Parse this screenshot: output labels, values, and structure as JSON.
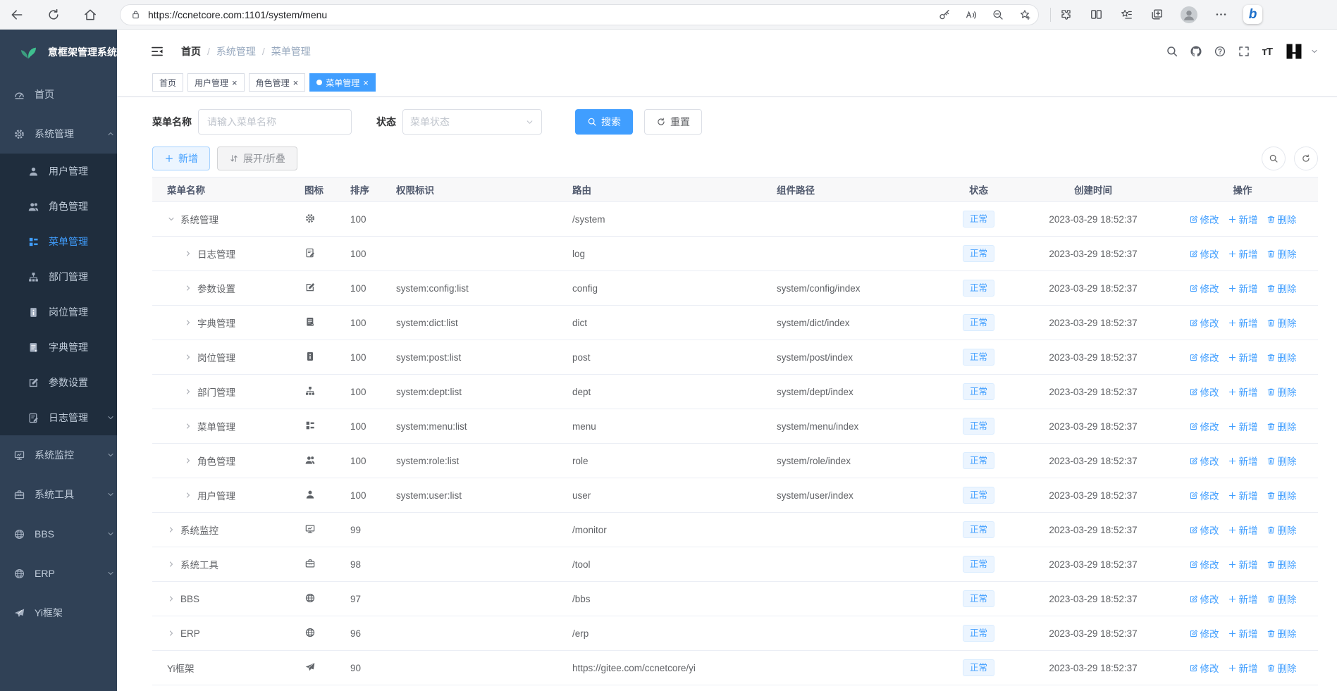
{
  "colors": {
    "accent": "#409eff",
    "sidebar_bg": "#304156",
    "submenu_bg": "#1f2d3d",
    "tag_bg": "#ecf5ff",
    "tag_border": "#d9ecff",
    "logo_green": "#3fbf8f"
  },
  "browser": {
    "url": "https://ccnetcore.com:1101/system/menu",
    "left_icons": [
      "back-icon",
      "refresh-icon",
      "home-icon"
    ],
    "pill_icons": [
      "lock-icon",
      "key-icon",
      "read-aloud-icon",
      "zoom-out-icon",
      "star-add-icon"
    ],
    "right_icons": [
      "essentials-icon",
      "split-screen-icon",
      "favorites-icon",
      "collections-icon",
      "profile-icon",
      "more-dots-icon",
      "bing-icon"
    ],
    "bing_glyph": "b"
  },
  "sidebar": {
    "logo_text": "意框架管理系统",
    "items": [
      {
        "id": "home",
        "label": "首页",
        "icon": "icon-dashboard",
        "type": "top"
      },
      {
        "id": "system-mgmt",
        "label": "系统管理",
        "icon": "icon-gear",
        "type": "top",
        "chevron": "up",
        "expanded": true
      },
      {
        "id": "user-mgmt",
        "label": "用户管理",
        "icon": "icon-user",
        "type": "sub"
      },
      {
        "id": "role-mgmt",
        "label": "角色管理",
        "icon": "icon-users",
        "type": "sub"
      },
      {
        "id": "menu-mgmt",
        "label": "菜单管理",
        "icon": "icon-menu-list",
        "type": "sub",
        "active": true
      },
      {
        "id": "dept-mgmt",
        "label": "部门管理",
        "icon": "icon-org-tree",
        "type": "sub"
      },
      {
        "id": "post-mgmt",
        "label": "岗位管理",
        "icon": "icon-badge",
        "type": "sub"
      },
      {
        "id": "dict-mgmt",
        "label": "字典管理",
        "icon": "icon-book",
        "type": "sub"
      },
      {
        "id": "config",
        "label": "参数设置",
        "icon": "icon-edit",
        "type": "sub"
      },
      {
        "id": "log-mgmt",
        "label": "日志管理",
        "icon": "icon-log",
        "type": "sub",
        "chevron": "down"
      },
      {
        "id": "monitor",
        "label": "系统监控",
        "icon": "icon-monitor",
        "type": "top",
        "chevron": "down"
      },
      {
        "id": "tool",
        "label": "系统工具",
        "icon": "icon-toolbox",
        "type": "top",
        "chevron": "down"
      },
      {
        "id": "bbs",
        "label": "BBS",
        "icon": "icon-globe",
        "type": "top",
        "chevron": "down"
      },
      {
        "id": "erp",
        "label": "ERP",
        "icon": "icon-globe",
        "type": "top",
        "chevron": "down"
      },
      {
        "id": "yi-framework",
        "label": "Yi框架",
        "icon": "icon-plane",
        "type": "top"
      }
    ]
  },
  "header": {
    "breadcrumb": [
      "首页",
      "系统管理",
      "菜单管理"
    ],
    "right_icons": [
      "search-icon",
      "github-icon",
      "question-icon",
      "fullscreen-icon",
      "font-size-icon"
    ],
    "font_size_glyph": "тT"
  },
  "tabs": [
    {
      "id": "home",
      "label": "首页",
      "closable": false,
      "active": false
    },
    {
      "id": "user-mgmt",
      "label": "用户管理",
      "closable": true,
      "active": false
    },
    {
      "id": "role-mgmt",
      "label": "角色管理",
      "closable": true,
      "active": false
    },
    {
      "id": "menu-mgmt",
      "label": "菜单管理",
      "closable": true,
      "active": true
    }
  ],
  "filters": {
    "name_label": "菜单名称",
    "name_placeholder": "请输入菜单名称",
    "name_value": "",
    "status_label": "状态",
    "status_placeholder": "菜单状态",
    "search_label": "搜索",
    "reset_label": "重置"
  },
  "toolbar": {
    "add_label": "新增",
    "fold_label": "展开/折叠"
  },
  "table": {
    "columns": [
      "菜单名称",
      "图标",
      "排序",
      "权限标识",
      "路由",
      "组件路径",
      "状态",
      "创建时间",
      "操作"
    ],
    "actions": {
      "edit": "修改",
      "add": "新增",
      "delete": "删除"
    },
    "rows": [
      {
        "id": "system",
        "name": "系统管理",
        "level": 1,
        "expand": "open",
        "icon": "icon-gear",
        "sort": "100",
        "perms": "",
        "route": "/system",
        "component": "",
        "status": "正常",
        "created": "2023-03-29 18:52:37"
      },
      {
        "id": "log",
        "name": "日志管理",
        "level": 2,
        "expand": "closed",
        "icon": "icon-log",
        "sort": "100",
        "perms": "",
        "route": "log",
        "component": "",
        "status": "正常",
        "created": "2023-03-29 18:52:37"
      },
      {
        "id": "config",
        "name": "参数设置",
        "level": 2,
        "expand": "closed",
        "icon": "icon-edit",
        "sort": "100",
        "perms": "system:config:list",
        "route": "config",
        "component": "system/config/index",
        "status": "正常",
        "created": "2023-03-29 18:52:37"
      },
      {
        "id": "dict",
        "name": "字典管理",
        "level": 2,
        "expand": "closed",
        "icon": "icon-book",
        "sort": "100",
        "perms": "system:dict:list",
        "route": "dict",
        "component": "system/dict/index",
        "status": "正常",
        "created": "2023-03-29 18:52:37"
      },
      {
        "id": "post",
        "name": "岗位管理",
        "level": 2,
        "expand": "closed",
        "icon": "icon-badge",
        "sort": "100",
        "perms": "system:post:list",
        "route": "post",
        "component": "system/post/index",
        "status": "正常",
        "created": "2023-03-29 18:52:37"
      },
      {
        "id": "dept",
        "name": "部门管理",
        "level": 2,
        "expand": "closed",
        "icon": "icon-org-tree",
        "sort": "100",
        "perms": "system:dept:list",
        "route": "dept",
        "component": "system/dept/index",
        "status": "正常",
        "created": "2023-03-29 18:52:37"
      },
      {
        "id": "menu",
        "name": "菜单管理",
        "level": 2,
        "expand": "closed",
        "icon": "icon-menu-list",
        "sort": "100",
        "perms": "system:menu:list",
        "route": "menu",
        "component": "system/menu/index",
        "status": "正常",
        "created": "2023-03-29 18:52:37"
      },
      {
        "id": "role",
        "name": "角色管理",
        "level": 2,
        "expand": "closed",
        "icon": "icon-users",
        "sort": "100",
        "perms": "system:role:list",
        "route": "role",
        "component": "system/role/index",
        "status": "正常",
        "created": "2023-03-29 18:52:37"
      },
      {
        "id": "user",
        "name": "用户管理",
        "level": 2,
        "expand": "closed",
        "icon": "icon-user",
        "sort": "100",
        "perms": "system:user:list",
        "route": "user",
        "component": "system/user/index",
        "status": "正常",
        "created": "2023-03-29 18:52:37"
      },
      {
        "id": "monitor",
        "name": "系统监控",
        "level": 1,
        "expand": "closed",
        "icon": "icon-monitor",
        "sort": "99",
        "perms": "",
        "route": "/monitor",
        "component": "",
        "status": "正常",
        "created": "2023-03-29 18:52:37"
      },
      {
        "id": "tool",
        "name": "系统工具",
        "level": 1,
        "expand": "closed",
        "icon": "icon-toolbox",
        "sort": "98",
        "perms": "",
        "route": "/tool",
        "component": "",
        "status": "正常",
        "created": "2023-03-29 18:52:37"
      },
      {
        "id": "bbs",
        "name": "BBS",
        "level": 1,
        "expand": "closed",
        "icon": "icon-globe",
        "sort": "97",
        "perms": "",
        "route": "/bbs",
        "component": "",
        "status": "正常",
        "created": "2023-03-29 18:52:37"
      },
      {
        "id": "erp",
        "name": "ERP",
        "level": 1,
        "expand": "closed",
        "icon": "icon-globe",
        "sort": "96",
        "perms": "",
        "route": "/erp",
        "component": "",
        "status": "正常",
        "created": "2023-03-29 18:52:37"
      },
      {
        "id": "yi",
        "name": "Yi框架",
        "level": 1,
        "expand": "none",
        "icon": "icon-plane",
        "sort": "90",
        "perms": "",
        "route": "https://gitee.com/ccnetcore/yi",
        "component": "",
        "status": "正常",
        "created": "2023-03-29 18:52:37"
      }
    ]
  }
}
